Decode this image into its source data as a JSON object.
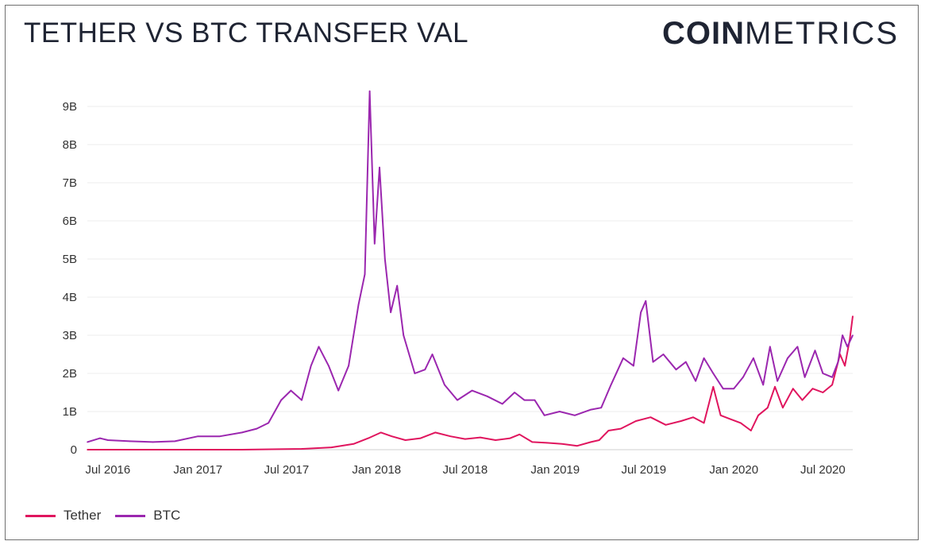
{
  "header": {
    "title": "TETHER VS BTC TRANSFER VAL",
    "logo_bold": "COIN",
    "logo_thin": "METRICS"
  },
  "chart_data": {
    "type": "line",
    "title": "TETHER VS BTC TRANSFER VAL",
    "xlabel": "",
    "ylabel": "",
    "x_range": [
      "2016-05-20",
      "2020-08-31"
    ],
    "ylim": [
      0,
      9500000000
    ],
    "y_ticks": [
      {
        "value": 0,
        "label": "0"
      },
      {
        "value": 1000000000,
        "label": "1B"
      },
      {
        "value": 2000000000,
        "label": "2B"
      },
      {
        "value": 3000000000,
        "label": "3B"
      },
      {
        "value": 4000000000,
        "label": "4B"
      },
      {
        "value": 5000000000,
        "label": "5B"
      },
      {
        "value": 6000000000,
        "label": "6B"
      },
      {
        "value": 7000000000,
        "label": "7B"
      },
      {
        "value": 8000000000,
        "label": "8B"
      },
      {
        "value": 9000000000,
        "label": "9B"
      }
    ],
    "x_ticks": [
      {
        "date": "2016-07-01",
        "label": "Jul 2016"
      },
      {
        "date": "2017-01-01",
        "label": "Jan 2017"
      },
      {
        "date": "2017-07-01",
        "label": "Jul 2017"
      },
      {
        "date": "2018-01-01",
        "label": "Jan 2018"
      },
      {
        "date": "2018-07-01",
        "label": "Jul 2018"
      },
      {
        "date": "2019-01-01",
        "label": "Jan 2019"
      },
      {
        "date": "2019-07-01",
        "label": "Jul 2019"
      },
      {
        "date": "2020-01-01",
        "label": "Jan 2020"
      },
      {
        "date": "2020-07-01",
        "label": "Jul 2020"
      }
    ],
    "grid": true,
    "legend_position": "bottom-left",
    "series": [
      {
        "name": "Tether",
        "color": "#e0155e",
        "points": [
          [
            "2016-05-20",
            0
          ],
          [
            "2016-10-01",
            0
          ],
          [
            "2017-01-01",
            0
          ],
          [
            "2017-04-01",
            0
          ],
          [
            "2017-06-01",
            10000000
          ],
          [
            "2017-08-01",
            20000000
          ],
          [
            "2017-10-01",
            60000000
          ],
          [
            "2017-11-15",
            150000000
          ],
          [
            "2017-12-15",
            300000000
          ],
          [
            "2018-01-10",
            450000000
          ],
          [
            "2018-02-01",
            350000000
          ],
          [
            "2018-03-01",
            250000000
          ],
          [
            "2018-04-01",
            300000000
          ],
          [
            "2018-05-01",
            450000000
          ],
          [
            "2018-06-01",
            350000000
          ],
          [
            "2018-07-01",
            280000000
          ],
          [
            "2018-08-01",
            320000000
          ],
          [
            "2018-09-01",
            250000000
          ],
          [
            "2018-10-01",
            300000000
          ],
          [
            "2018-10-20",
            400000000
          ],
          [
            "2018-11-15",
            200000000
          ],
          [
            "2018-12-15",
            180000000
          ],
          [
            "2019-01-15",
            150000000
          ],
          [
            "2019-02-15",
            100000000
          ],
          [
            "2019-03-15",
            200000000
          ],
          [
            "2019-04-01",
            250000000
          ],
          [
            "2019-04-20",
            500000000
          ],
          [
            "2019-05-15",
            550000000
          ],
          [
            "2019-06-15",
            750000000
          ],
          [
            "2019-07-15",
            850000000
          ],
          [
            "2019-08-15",
            650000000
          ],
          [
            "2019-09-15",
            750000000
          ],
          [
            "2019-10-10",
            850000000
          ],
          [
            "2019-11-01",
            700000000
          ],
          [
            "2019-11-20",
            1650000000
          ],
          [
            "2019-12-05",
            900000000
          ],
          [
            "2019-12-25",
            800000000
          ],
          [
            "2020-01-15",
            700000000
          ],
          [
            "2020-02-05",
            500000000
          ],
          [
            "2020-02-20",
            900000000
          ],
          [
            "2020-03-10",
            1100000000
          ],
          [
            "2020-03-25",
            1650000000
          ],
          [
            "2020-04-10",
            1100000000
          ],
          [
            "2020-05-01",
            1600000000
          ],
          [
            "2020-05-20",
            1300000000
          ],
          [
            "2020-06-10",
            1600000000
          ],
          [
            "2020-07-01",
            1500000000
          ],
          [
            "2020-07-20",
            1700000000
          ],
          [
            "2020-08-05",
            2500000000
          ],
          [
            "2020-08-15",
            2200000000
          ],
          [
            "2020-08-25",
            2900000000
          ],
          [
            "2020-08-31",
            3500000000
          ]
        ]
      },
      {
        "name": "BTC",
        "color": "#9b27af",
        "points": [
          [
            "2016-05-20",
            200000000
          ],
          [
            "2016-06-15",
            300000000
          ],
          [
            "2016-07-01",
            250000000
          ],
          [
            "2016-08-15",
            220000000
          ],
          [
            "2016-10-01",
            200000000
          ],
          [
            "2016-11-15",
            220000000
          ],
          [
            "2017-01-01",
            350000000
          ],
          [
            "2017-02-15",
            350000000
          ],
          [
            "2017-04-01",
            450000000
          ],
          [
            "2017-05-01",
            550000000
          ],
          [
            "2017-05-25",
            700000000
          ],
          [
            "2017-06-20",
            1300000000
          ],
          [
            "2017-07-10",
            1550000000
          ],
          [
            "2017-08-01",
            1300000000
          ],
          [
            "2017-08-20",
            2200000000
          ],
          [
            "2017-09-05",
            2700000000
          ],
          [
            "2017-09-25",
            2200000000
          ],
          [
            "2017-10-15",
            1550000000
          ],
          [
            "2017-11-05",
            2200000000
          ],
          [
            "2017-11-25",
            3800000000
          ],
          [
            "2017-12-08",
            4600000000
          ],
          [
            "2017-12-18",
            9400000000
          ],
          [
            "2017-12-28",
            5400000000
          ],
          [
            "2018-01-07",
            7400000000
          ],
          [
            "2018-01-18",
            5000000000
          ],
          [
            "2018-01-30",
            3600000000
          ],
          [
            "2018-02-12",
            4300000000
          ],
          [
            "2018-02-25",
            3000000000
          ],
          [
            "2018-03-20",
            2000000000
          ],
          [
            "2018-04-10",
            2100000000
          ],
          [
            "2018-04-25",
            2500000000
          ],
          [
            "2018-05-20",
            1700000000
          ],
          [
            "2018-06-15",
            1300000000
          ],
          [
            "2018-07-15",
            1550000000
          ],
          [
            "2018-08-15",
            1400000000
          ],
          [
            "2018-09-15",
            1200000000
          ],
          [
            "2018-10-10",
            1500000000
          ],
          [
            "2018-10-30",
            1300000000
          ],
          [
            "2018-11-20",
            1300000000
          ],
          [
            "2018-12-10",
            900000000
          ],
          [
            "2019-01-10",
            1000000000
          ],
          [
            "2019-02-10",
            900000000
          ],
          [
            "2019-03-15",
            1050000000
          ],
          [
            "2019-04-05",
            1100000000
          ],
          [
            "2019-04-25",
            1700000000
          ],
          [
            "2019-05-20",
            2400000000
          ],
          [
            "2019-06-10",
            2200000000
          ],
          [
            "2019-06-25",
            3600000000
          ],
          [
            "2019-07-05",
            3900000000
          ],
          [
            "2019-07-20",
            2300000000
          ],
          [
            "2019-08-10",
            2500000000
          ],
          [
            "2019-09-05",
            2100000000
          ],
          [
            "2019-09-25",
            2300000000
          ],
          [
            "2019-10-15",
            1800000000
          ],
          [
            "2019-11-01",
            2400000000
          ],
          [
            "2019-11-20",
            2000000000
          ],
          [
            "2019-12-10",
            1600000000
          ],
          [
            "2020-01-01",
            1600000000
          ],
          [
            "2020-01-20",
            1900000000
          ],
          [
            "2020-02-10",
            2400000000
          ],
          [
            "2020-03-01",
            1700000000
          ],
          [
            "2020-03-15",
            2700000000
          ],
          [
            "2020-03-30",
            1800000000
          ],
          [
            "2020-04-20",
            2400000000
          ],
          [
            "2020-05-10",
            2700000000
          ],
          [
            "2020-05-25",
            1900000000
          ],
          [
            "2020-06-15",
            2600000000
          ],
          [
            "2020-07-01",
            2000000000
          ],
          [
            "2020-07-20",
            1900000000
          ],
          [
            "2020-08-01",
            2300000000
          ],
          [
            "2020-08-10",
            3000000000
          ],
          [
            "2020-08-20",
            2700000000
          ],
          [
            "2020-08-31",
            3000000000
          ]
        ]
      }
    ]
  }
}
